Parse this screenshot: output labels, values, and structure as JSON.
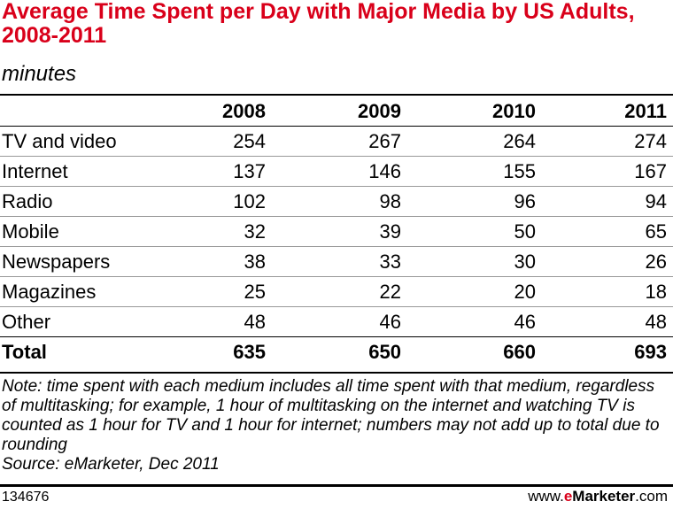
{
  "title": "Average Time Spent per Day with Major Media by US Adults, 2008-2011",
  "subtitle": "minutes",
  "note": "Note: time spent with each medium includes all time spent with that medium, regardless of multitasking; for example, 1 hour of multitasking on the internet and watching TV is counted as 1 hour for TV and 1 hour for internet; numbers may not add up to total due to rounding",
  "source": "Source: eMarketer, Dec 2011",
  "chart_id": "134676",
  "brand": {
    "prefix": "www.",
    "e": "e",
    "name": "Marketer",
    "suffix": ".com"
  },
  "colors": {
    "title": "#d9001a",
    "brand_accent": "#d9001a"
  },
  "chart_data": {
    "type": "table",
    "title": "Average Time Spent per Day with Major Media by US Adults, 2008-2011",
    "subtitle": "minutes",
    "columns": [
      "2008",
      "2009",
      "2010",
      "2011"
    ],
    "rows": [
      {
        "label": "TV and video",
        "values": [
          "254",
          "267",
          "264",
          "274"
        ]
      },
      {
        "label": "Internet",
        "values": [
          "137",
          "146",
          "155",
          "167"
        ]
      },
      {
        "label": "Radio",
        "values": [
          "102",
          "98",
          "96",
          "94"
        ]
      },
      {
        "label": "Mobile",
        "values": [
          "32",
          "39",
          "50",
          "65"
        ]
      },
      {
        "label": "Newspapers",
        "values": [
          "38",
          "33",
          "30",
          "26"
        ]
      },
      {
        "label": "Magazines",
        "values": [
          "25",
          "22",
          "20",
          "18"
        ]
      },
      {
        "label": "Other",
        "values": [
          "48",
          "46",
          "46",
          "48"
        ]
      }
    ],
    "total": {
      "label": "Total",
      "values": [
        "635",
        "650",
        "660",
        "693"
      ]
    }
  }
}
